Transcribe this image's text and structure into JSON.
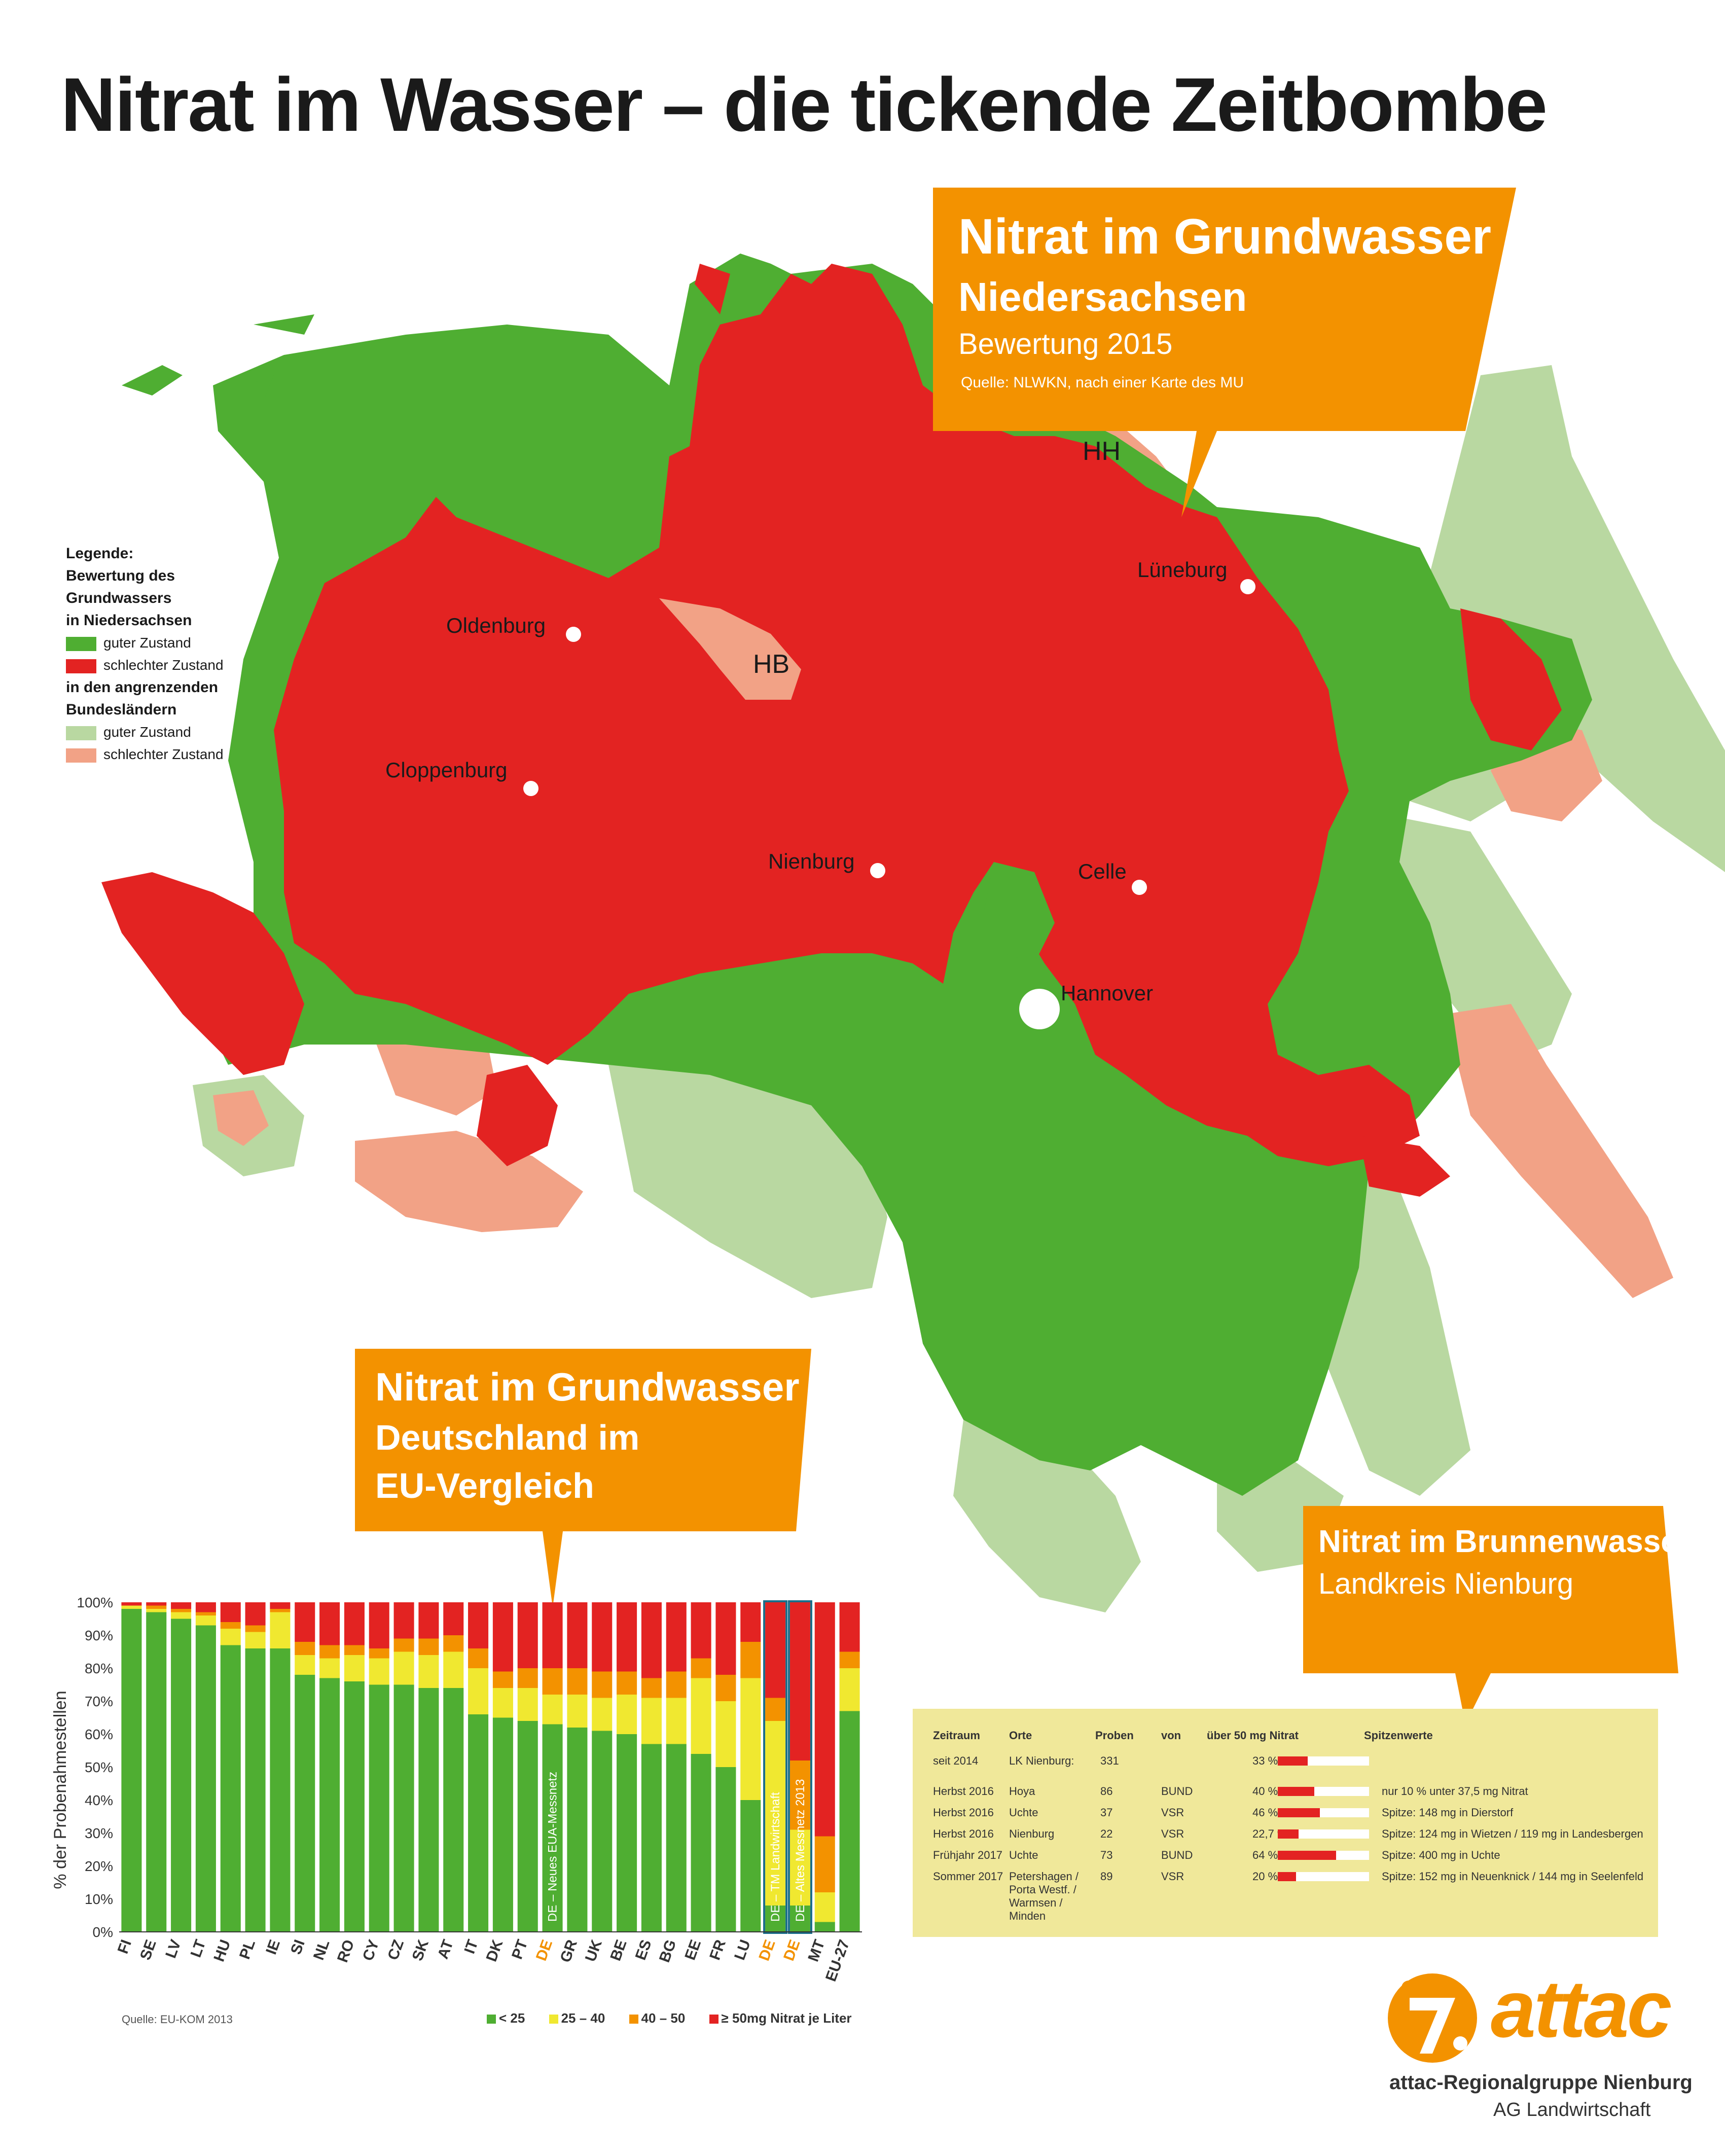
{
  "title": "Nitrat im Wasser – die tickende Zeitbombe",
  "colors": {
    "good": "#4fae32",
    "bad": "#e32322",
    "good_light": "#b9d8a1",
    "bad_light": "#f2a286",
    "orange": "#f39200",
    "yellow": "#f0e830",
    "mid_orange": "#f39200",
    "panel_yellow": "#f0e89a"
  },
  "callout_nds": {
    "title": "Nitrat im Grundwasser",
    "subtitle": "Niedersachsen",
    "line3": "Bewertung 2015",
    "source": "Quelle: NLWKN, nach einer Karte des MU"
  },
  "callout_de": {
    "title": "Nitrat im Grundwasser",
    "line2": "Deutschland im",
    "line3": "EU-Vergleich"
  },
  "callout_nienburg": {
    "title": "Nitrat im Brunnenwasser",
    "subtitle": "Landkreis Nienburg"
  },
  "legend": {
    "heading1": "Legende:",
    "heading2": "Bewertung des Grundwassers",
    "heading3": "in Niedersachsen",
    "good": "guter Zustand",
    "bad": "schlechter Zustand",
    "heading4": "in den angrenzenden",
    "heading5": "Bundesländern",
    "good_light": "guter Zustand",
    "bad_light": "schlechter Zustand"
  },
  "map": {
    "cities": [
      {
        "name": "Oldenburg"
      },
      {
        "name": "Cloppenburg"
      },
      {
        "name": "Nienburg"
      },
      {
        "name": "Celle"
      },
      {
        "name": "Lüneburg"
      },
      {
        "name": "Hannover"
      }
    ],
    "hb": "HB",
    "hh": "HH"
  },
  "chart_data": {
    "type": "bar",
    "stacked": true,
    "ylabel": "% der Probenahmestellen",
    "yticks": [
      "0%",
      "10%",
      "20%",
      "30%",
      "40%",
      "50%",
      "60%",
      "70%",
      "80%",
      "90%",
      "100%"
    ],
    "ylim": [
      0,
      100
    ],
    "categories": [
      "FI",
      "SE",
      "LV",
      "LT",
      "HU",
      "PL",
      "IE",
      "SI",
      "NL",
      "RO",
      "CY",
      "CZ",
      "SK",
      "AT",
      "IT",
      "DK",
      "PT",
      "DE",
      "GR",
      "UK",
      "BE",
      "ES",
      "BG",
      "EE",
      "FR",
      "LU",
      "DE",
      "DE",
      "MT",
      "EU-27"
    ],
    "highlight_categories": [
      17,
      26,
      27
    ],
    "series": [
      {
        "name": "< 25",
        "values": [
          98,
          97,
          95,
          93,
          87,
          86,
          86,
          78,
          77,
          76,
          75,
          75,
          74,
          74,
          66,
          65,
          64,
          63,
          62,
          61,
          60,
          57,
          57,
          54,
          50,
          40,
          8,
          8,
          3,
          67
        ]
      },
      {
        "name": "25 – 40",
        "values": [
          1,
          1,
          2,
          3,
          5,
          5,
          11,
          6,
          6,
          8,
          8,
          10,
          10,
          11,
          14,
          9,
          10,
          9,
          10,
          10,
          12,
          14,
          14,
          23,
          20,
          37,
          56,
          23,
          9,
          13
        ]
      },
      {
        "name": "40 – 50",
        "values": [
          0,
          1,
          1,
          1,
          2,
          2,
          1,
          4,
          4,
          3,
          3,
          4,
          5,
          5,
          6,
          5,
          6,
          8,
          8,
          8,
          7,
          6,
          8,
          6,
          8,
          11,
          7,
          21,
          17,
          5
        ]
      },
      {
        "name": "≥ 50mg Nitrat je Liter",
        "values": [
          1,
          1,
          2,
          3,
          6,
          7,
          2,
          12,
          13,
          13,
          14,
          11,
          11,
          10,
          14,
          21,
          20,
          20,
          20,
          21,
          21,
          23,
          21,
          17,
          22,
          12,
          29,
          48,
          71,
          15
        ]
      }
    ],
    "bar_annotations": [
      {
        "category_index": 17,
        "text": "DE – Neues EUA-Messnetz"
      },
      {
        "category_index": 26,
        "text": "DE – TM Landwirtschaft"
      },
      {
        "category_index": 27,
        "text": "DE – Altes Messnetz 2013"
      }
    ],
    "legend_position": "bottom",
    "source": "Quelle: EU-KOM 2013"
  },
  "table": {
    "headers": [
      "Zeitraum",
      "Orte",
      "Proben",
      "von",
      "über 50 mg Nitrat",
      "Spitzenwerte"
    ],
    "rows": [
      {
        "zeitraum": "seit 2014",
        "orte": "LK Nienburg:",
        "proben": "331",
        "von": "",
        "pct": "33 %",
        "pct_value": 33,
        "spitze": ""
      },
      {
        "zeitraum": "Herbst 2016",
        "orte": "Hoya",
        "proben": "86",
        "von": "BUND",
        "pct": "40 %",
        "pct_value": 40,
        "spitze": "nur 10 % unter 37,5 mg Nitrat"
      },
      {
        "zeitraum": "Herbst 2016",
        "orte": "Uchte",
        "proben": "37",
        "von": "VSR",
        "pct": "46 %",
        "pct_value": 46,
        "spitze": "Spitze: 148 mg in Dierstorf"
      },
      {
        "zeitraum": "Herbst 2016",
        "orte": "Nienburg",
        "proben": "22",
        "von": "VSR",
        "pct": "22,7 %",
        "pct_value": 22.7,
        "spitze": "Spitze: 124 mg in Wietzen / 119 mg  in Landesbergen"
      },
      {
        "zeitraum": "Frühjahr 2017",
        "orte": "Uchte",
        "proben": "73",
        "von": "BUND",
        "pct": "64 %",
        "pct_value": 64,
        "spitze": "Spitze: 400 mg in Uchte"
      },
      {
        "zeitraum": "Sommer 2017",
        "orte": "Petershagen / Porta Westf. / Warmsen / Minden",
        "proben": "89",
        "von": "VSR",
        "pct": "20 %",
        "pct_value": 20,
        "spitze": "Spitze: 152 mg in Neuenknick / 144 mg in Seelenfeld"
      }
    ]
  },
  "logo": {
    "name": "attac",
    "line1": "attac-Regionalgruppe Nienburg",
    "line2": "AG Landwirtschaft"
  }
}
